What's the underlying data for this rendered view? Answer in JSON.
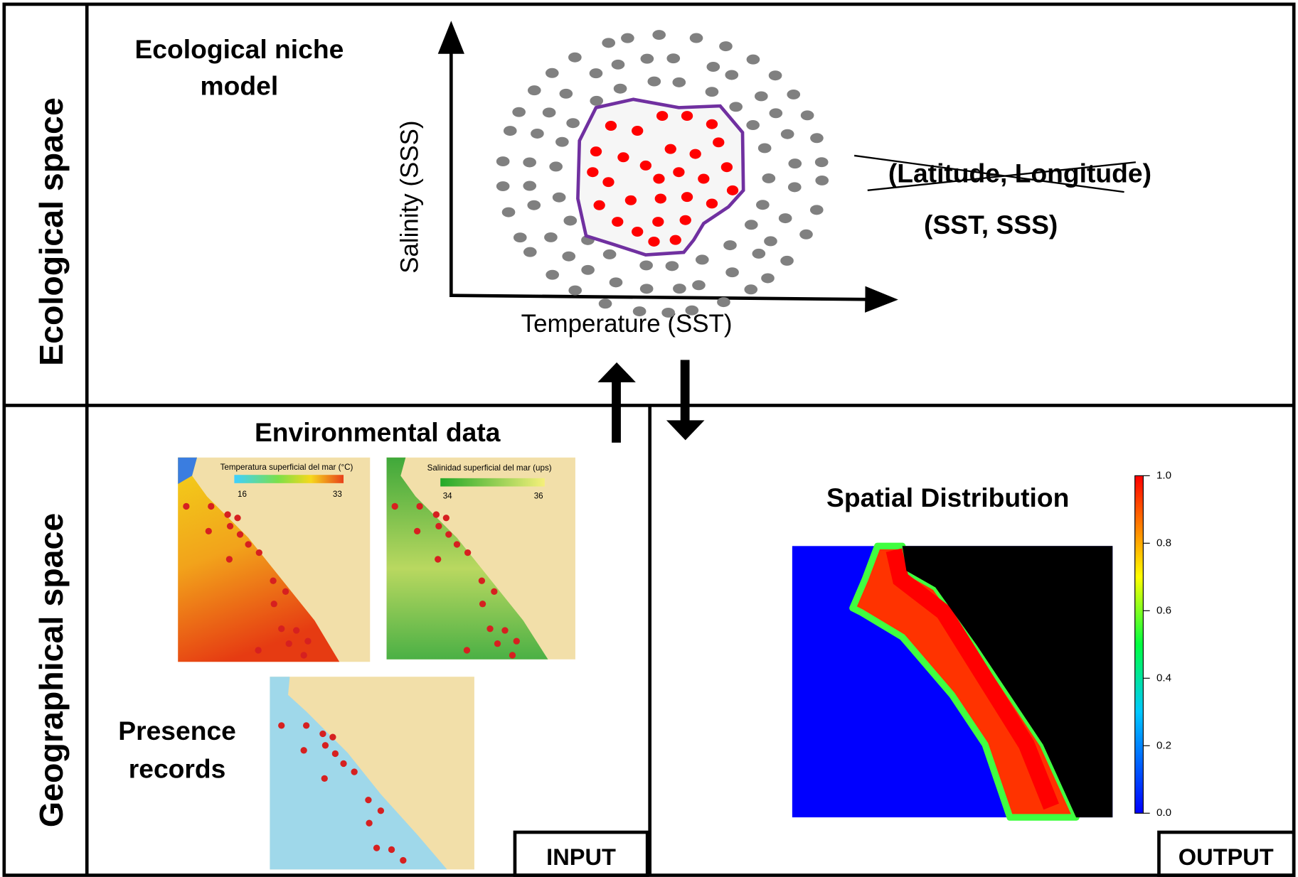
{
  "sections": {
    "ecological": "Ecological space",
    "geographical": "Geographical space"
  },
  "niche_model": {
    "title_lines": [
      "Ecological niche",
      "model"
    ],
    "y_axis_label": "Salinity (SSS)",
    "x_axis_label": "Temperature (SST)",
    "struck_coordinates": "(Latitude, Longitude)",
    "variables": "(SST, SSS)"
  },
  "input": {
    "environmental_title": "Environmental data",
    "sst_map": {
      "legend_title": "Temperatura superficial del mar (°C)",
      "legend_min": "16",
      "legend_max": "33"
    },
    "sss_map": {
      "legend_title": "Salinidad superficial del mar (ups)",
      "legend_min": "34",
      "legend_max": "36"
    },
    "presence_title_lines": [
      "Presence",
      "records"
    ],
    "label": "INPUT"
  },
  "output": {
    "title": "Spatial Distribution",
    "colorbar_ticks": [
      "1.0",
      "0.8",
      "0.6",
      "0.4",
      "0.2",
      "0.0"
    ],
    "label": "OUTPUT"
  }
}
